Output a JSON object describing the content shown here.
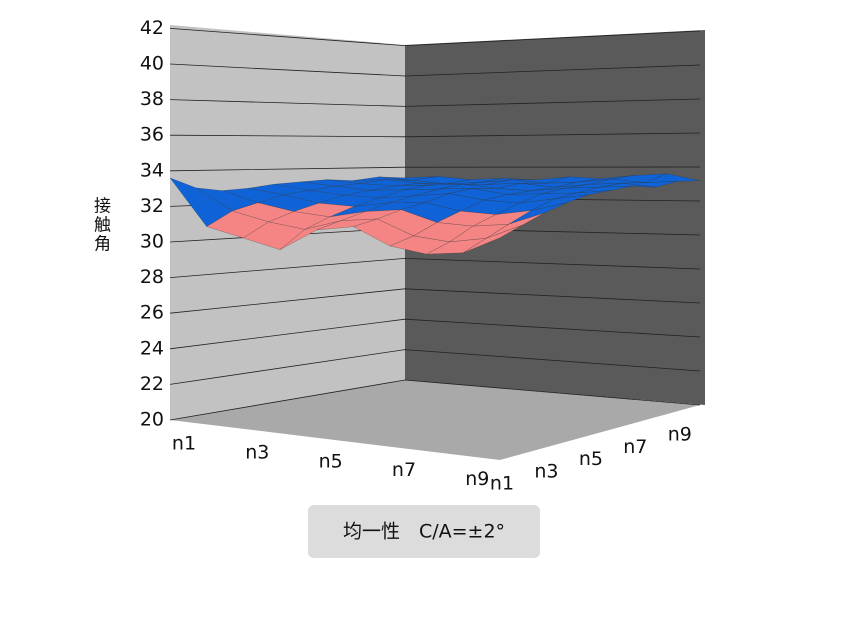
{
  "chart_data": {
    "type": "surface3d",
    "title": "均一性　C/A=±2°",
    "zlabel": "接触角",
    "x": [
      "n1",
      null,
      "n3",
      null,
      "n5",
      null,
      "n7",
      null,
      "n9",
      null
    ],
    "y": [
      "n1",
      null,
      "n3",
      null,
      "n5",
      null,
      "n7",
      null,
      "n9",
      null
    ],
    "values": [
      [
        33.6,
        31.0,
        30.5,
        30.0,
        31.2,
        31.5,
        30.6,
        30.3,
        30.5,
        31.4
      ],
      [
        33.0,
        31.8,
        31.3,
        31.0,
        31.6,
        31.8,
        31.0,
        30.8,
        31.1,
        31.9
      ],
      [
        32.8,
        32.2,
        31.8,
        31.6,
        32.0,
        32.2,
        31.6,
        31.5,
        31.7,
        32.4
      ],
      [
        32.9,
        32.6,
        32.2,
        32.1,
        32.4,
        32.5,
        32.1,
        32.0,
        32.3,
        32.8
      ],
      [
        33.1,
        32.8,
        32.6,
        32.5,
        32.7,
        32.9,
        32.6,
        32.5,
        32.8,
        33.1
      ],
      [
        33.2,
        33.0,
        32.8,
        32.9,
        33.0,
        33.1,
        32.8,
        32.9,
        33.0,
        33.2
      ],
      [
        33.3,
        33.1,
        33.0,
        33.1,
        33.2,
        33.0,
        32.9,
        33.1,
        33.2,
        33.3
      ],
      [
        33.2,
        33.3,
        33.1,
        32.9,
        33.1,
        33.2,
        33.0,
        33.2,
        33.3,
        33.1
      ],
      [
        33.4,
        33.2,
        33.0,
        33.1,
        33.3,
        33.1,
        33.2,
        33.4,
        33.2,
        33.3
      ],
      [
        33.3,
        33.4,
        33.2,
        33.3,
        33.2,
        33.4,
        33.3,
        33.5,
        33.6,
        33.2
      ]
    ],
    "color_levels": [
      30,
      32,
      34
    ],
    "colors": [
      "#f58585",
      "#0f63d6"
    ],
    "zlim": [
      20,
      42
    ],
    "zticks": [
      20,
      22,
      24,
      26,
      28,
      30,
      32,
      34,
      36,
      38,
      40,
      42
    ],
    "grid": true
  }
}
